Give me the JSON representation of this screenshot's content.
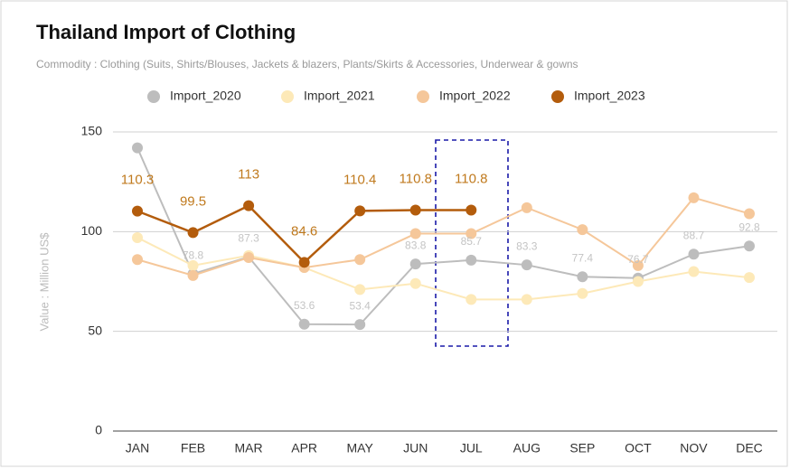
{
  "chart_data": {
    "type": "line",
    "title": "Thailand Import of Clothing",
    "subtitle": "Commodity : Clothing (Suits, Shirts/Blouses, Jackets & blazers, Plants/Skirts & Accessories, Underwear & gowns",
    "y_label": "Value : Million US$",
    "categories": [
      "JAN",
      "FEB",
      "MAR",
      "APR",
      "MAY",
      "JUN",
      "JUL",
      "AUG",
      "SEP",
      "OCT",
      "NOV",
      "DEC"
    ],
    "series": [
      {
        "name": "Import_2020",
        "color": "#bdbdbd",
        "label_color": "#c4c4c4",
        "values": [
          142,
          78.8,
          87.3,
          53.6,
          53.4,
          83.8,
          85.7,
          83.3,
          77.4,
          76.7,
          88.7,
          92.8
        ],
        "value_labels": [
          null,
          "78.8",
          "87.3",
          "53.6",
          "53.4",
          "83.8",
          "85.7",
          "83.3",
          "77.4",
          "76.7",
          "88.7",
          "92.8"
        ]
      },
      {
        "name": "Import_2021",
        "color": "#fde9b8",
        "values": [
          97,
          83,
          88,
          82,
          71,
          74,
          66,
          66,
          69,
          75,
          80,
          77
        ]
      },
      {
        "name": "Import_2022",
        "color": "#f5c79a",
        "values": [
          86,
          78,
          87,
          82,
          86,
          99,
          99,
          112,
          101,
          83,
          117,
          109
        ]
      },
      {
        "name": "Import_2023",
        "color": "#b35c0c",
        "label_color": "#c07a1e",
        "values": [
          110.3,
          99.5,
          113,
          84.6,
          110.4,
          110.8,
          110.8,
          null,
          null,
          null,
          null,
          null
        ],
        "value_labels": [
          "110.3",
          "99.5",
          "113",
          "84.6",
          "110.4",
          "110.8",
          "110.8",
          null,
          null,
          null,
          null,
          null
        ]
      }
    ],
    "ylim": [
      0,
      150
    ],
    "yticks": [
      0,
      50,
      100,
      150
    ],
    "grid": true
  }
}
